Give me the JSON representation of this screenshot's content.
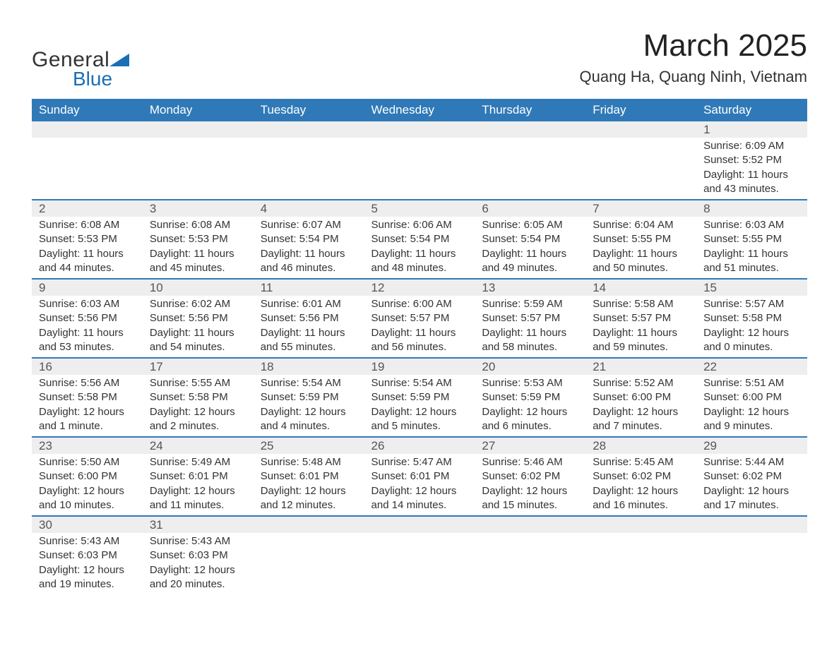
{
  "logo": {
    "top": "General",
    "bottom": "Blue"
  },
  "title": "March 2025",
  "location": "Quang Ha, Quang Ninh, Vietnam",
  "colors": {
    "header_bg": "#3079b8",
    "header_fg": "#ffffff",
    "daynum_bg": "#eeeeee",
    "row_border": "#3079b8",
    "text": "#333333",
    "logo_blue": "#1b6fb5"
  },
  "typography": {
    "title_fontsize": 44,
    "location_fontsize": 22,
    "header_fontsize": 17,
    "daynum_fontsize": 17,
    "body_fontsize": 15
  },
  "day_headers": [
    "Sunday",
    "Monday",
    "Tuesday",
    "Wednesday",
    "Thursday",
    "Friday",
    "Saturday"
  ],
  "weeks": [
    [
      null,
      null,
      null,
      null,
      null,
      null,
      {
        "n": "1",
        "sr": "Sunrise: 6:09 AM",
        "ss": "Sunset: 5:52 PM",
        "dl": "Daylight: 11 hours and 43 minutes."
      }
    ],
    [
      {
        "n": "2",
        "sr": "Sunrise: 6:08 AM",
        "ss": "Sunset: 5:53 PM",
        "dl": "Daylight: 11 hours and 44 minutes."
      },
      {
        "n": "3",
        "sr": "Sunrise: 6:08 AM",
        "ss": "Sunset: 5:53 PM",
        "dl": "Daylight: 11 hours and 45 minutes."
      },
      {
        "n": "4",
        "sr": "Sunrise: 6:07 AM",
        "ss": "Sunset: 5:54 PM",
        "dl": "Daylight: 11 hours and 46 minutes."
      },
      {
        "n": "5",
        "sr": "Sunrise: 6:06 AM",
        "ss": "Sunset: 5:54 PM",
        "dl": "Daylight: 11 hours and 48 minutes."
      },
      {
        "n": "6",
        "sr": "Sunrise: 6:05 AM",
        "ss": "Sunset: 5:54 PM",
        "dl": "Daylight: 11 hours and 49 minutes."
      },
      {
        "n": "7",
        "sr": "Sunrise: 6:04 AM",
        "ss": "Sunset: 5:55 PM",
        "dl": "Daylight: 11 hours and 50 minutes."
      },
      {
        "n": "8",
        "sr": "Sunrise: 6:03 AM",
        "ss": "Sunset: 5:55 PM",
        "dl": "Daylight: 11 hours and 51 minutes."
      }
    ],
    [
      {
        "n": "9",
        "sr": "Sunrise: 6:03 AM",
        "ss": "Sunset: 5:56 PM",
        "dl": "Daylight: 11 hours and 53 minutes."
      },
      {
        "n": "10",
        "sr": "Sunrise: 6:02 AM",
        "ss": "Sunset: 5:56 PM",
        "dl": "Daylight: 11 hours and 54 minutes."
      },
      {
        "n": "11",
        "sr": "Sunrise: 6:01 AM",
        "ss": "Sunset: 5:56 PM",
        "dl": "Daylight: 11 hours and 55 minutes."
      },
      {
        "n": "12",
        "sr": "Sunrise: 6:00 AM",
        "ss": "Sunset: 5:57 PM",
        "dl": "Daylight: 11 hours and 56 minutes."
      },
      {
        "n": "13",
        "sr": "Sunrise: 5:59 AM",
        "ss": "Sunset: 5:57 PM",
        "dl": "Daylight: 11 hours and 58 minutes."
      },
      {
        "n": "14",
        "sr": "Sunrise: 5:58 AM",
        "ss": "Sunset: 5:57 PM",
        "dl": "Daylight: 11 hours and 59 minutes."
      },
      {
        "n": "15",
        "sr": "Sunrise: 5:57 AM",
        "ss": "Sunset: 5:58 PM",
        "dl": "Daylight: 12 hours and 0 minutes."
      }
    ],
    [
      {
        "n": "16",
        "sr": "Sunrise: 5:56 AM",
        "ss": "Sunset: 5:58 PM",
        "dl": "Daylight: 12 hours and 1 minute."
      },
      {
        "n": "17",
        "sr": "Sunrise: 5:55 AM",
        "ss": "Sunset: 5:58 PM",
        "dl": "Daylight: 12 hours and 2 minutes."
      },
      {
        "n": "18",
        "sr": "Sunrise: 5:54 AM",
        "ss": "Sunset: 5:59 PM",
        "dl": "Daylight: 12 hours and 4 minutes."
      },
      {
        "n": "19",
        "sr": "Sunrise: 5:54 AM",
        "ss": "Sunset: 5:59 PM",
        "dl": "Daylight: 12 hours and 5 minutes."
      },
      {
        "n": "20",
        "sr": "Sunrise: 5:53 AM",
        "ss": "Sunset: 5:59 PM",
        "dl": "Daylight: 12 hours and 6 minutes."
      },
      {
        "n": "21",
        "sr": "Sunrise: 5:52 AM",
        "ss": "Sunset: 6:00 PM",
        "dl": "Daylight: 12 hours and 7 minutes."
      },
      {
        "n": "22",
        "sr": "Sunrise: 5:51 AM",
        "ss": "Sunset: 6:00 PM",
        "dl": "Daylight: 12 hours and 9 minutes."
      }
    ],
    [
      {
        "n": "23",
        "sr": "Sunrise: 5:50 AM",
        "ss": "Sunset: 6:00 PM",
        "dl": "Daylight: 12 hours and 10 minutes."
      },
      {
        "n": "24",
        "sr": "Sunrise: 5:49 AM",
        "ss": "Sunset: 6:01 PM",
        "dl": "Daylight: 12 hours and 11 minutes."
      },
      {
        "n": "25",
        "sr": "Sunrise: 5:48 AM",
        "ss": "Sunset: 6:01 PM",
        "dl": "Daylight: 12 hours and 12 minutes."
      },
      {
        "n": "26",
        "sr": "Sunrise: 5:47 AM",
        "ss": "Sunset: 6:01 PM",
        "dl": "Daylight: 12 hours and 14 minutes."
      },
      {
        "n": "27",
        "sr": "Sunrise: 5:46 AM",
        "ss": "Sunset: 6:02 PM",
        "dl": "Daylight: 12 hours and 15 minutes."
      },
      {
        "n": "28",
        "sr": "Sunrise: 5:45 AM",
        "ss": "Sunset: 6:02 PM",
        "dl": "Daylight: 12 hours and 16 minutes."
      },
      {
        "n": "29",
        "sr": "Sunrise: 5:44 AM",
        "ss": "Sunset: 6:02 PM",
        "dl": "Daylight: 12 hours and 17 minutes."
      }
    ],
    [
      {
        "n": "30",
        "sr": "Sunrise: 5:43 AM",
        "ss": "Sunset: 6:03 PM",
        "dl": "Daylight: 12 hours and 19 minutes."
      },
      {
        "n": "31",
        "sr": "Sunrise: 5:43 AM",
        "ss": "Sunset: 6:03 PM",
        "dl": "Daylight: 12 hours and 20 minutes."
      },
      null,
      null,
      null,
      null,
      null
    ]
  ]
}
